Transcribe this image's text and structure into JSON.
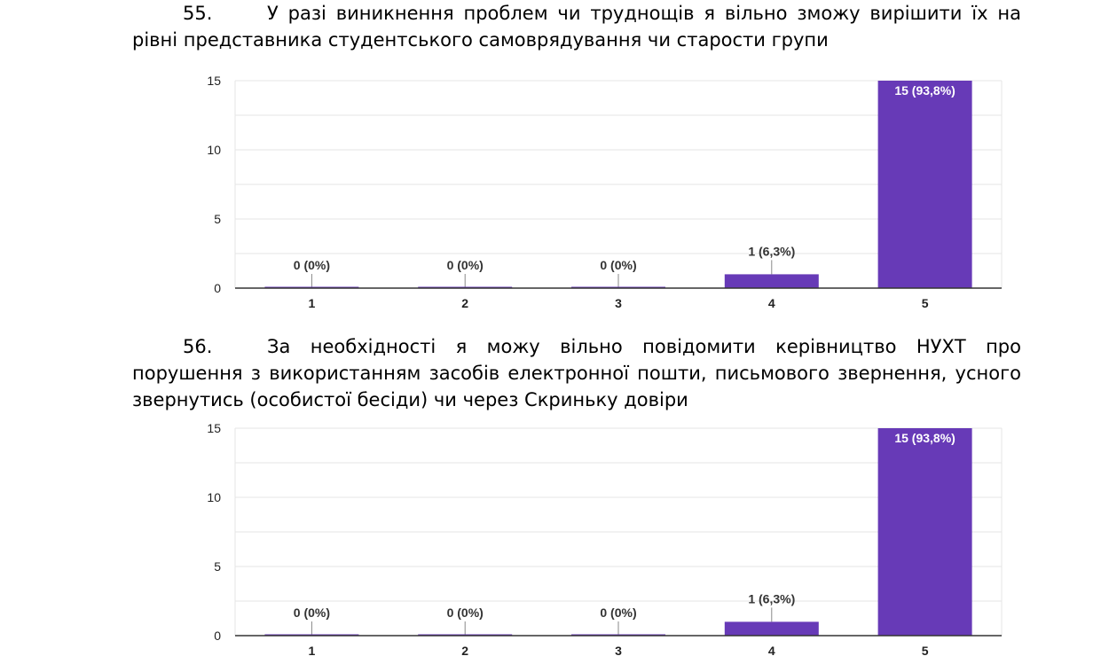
{
  "questions": [
    {
      "number": "55.",
      "text_line1": "У разі виникнення проблем чи труднощів я вільно зможу вирішити їх на",
      "text_rest": "рівні представника студентського самоврядування чи старости групи"
    },
    {
      "number": "56.",
      "text_line1": "За необхідності я можу вільно повідомити керівництво НУХТ про",
      "text_rest": "порушення з використанням засобів електронної пошти, письмового звернення, усного звернутись (особистої бесіди) чи через Скриньку довіри"
    }
  ],
  "chart_data": [
    {
      "type": "bar",
      "categories": [
        "1",
        "2",
        "3",
        "4",
        "5"
      ],
      "values": [
        0,
        0,
        0,
        1,
        15
      ],
      "data_labels": [
        "0 (0%)",
        "0 (0%)",
        "0 (0%)",
        "1 (6,3%)",
        "15 (93,8%)"
      ],
      "yticks": [
        0,
        5,
        10,
        15
      ],
      "ylim": [
        0,
        15
      ],
      "grid": true,
      "bar_color": "#673ab7"
    },
    {
      "type": "bar",
      "categories": [
        "1",
        "2",
        "3",
        "4",
        "5"
      ],
      "values": [
        0,
        0,
        0,
        1,
        15
      ],
      "data_labels": [
        "0 (0%)",
        "0 (0%)",
        "0 (0%)",
        "1 (6,3%)",
        "15 (93,8%)"
      ],
      "yticks": [
        0,
        5,
        10,
        15
      ],
      "ylim": [
        0,
        15
      ],
      "grid": true,
      "bar_color": "#673ab7"
    }
  ]
}
